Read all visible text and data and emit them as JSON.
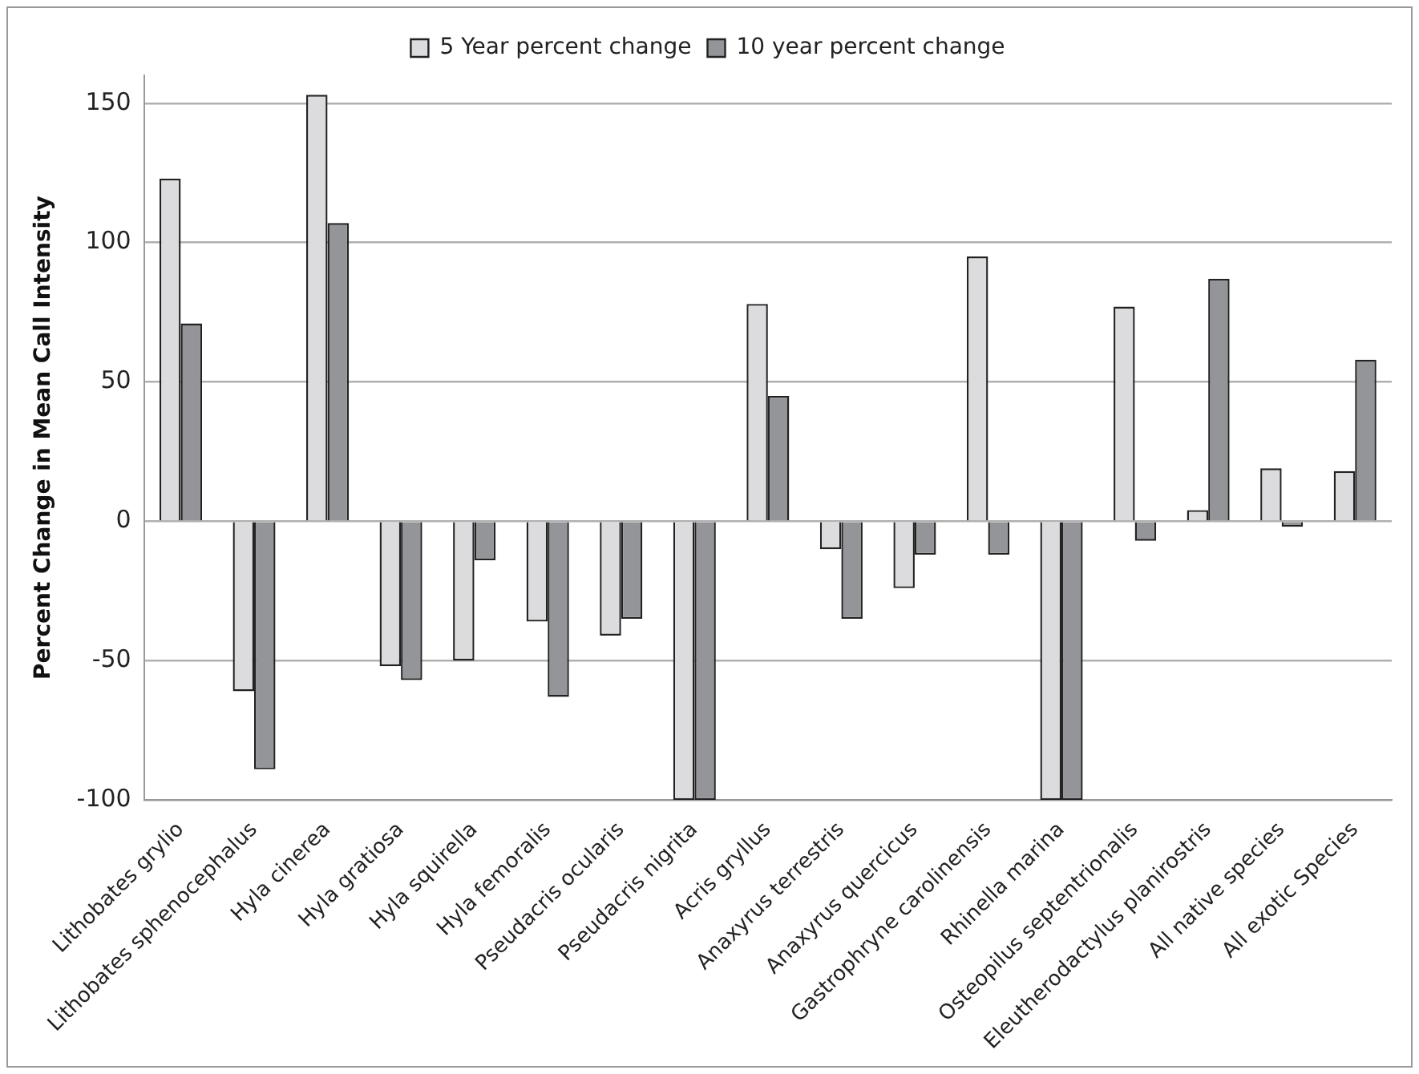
{
  "chart_data": {
    "type": "bar",
    "ylabel": "Percent Change in Mean Call Intensity",
    "categories": [
      "Lithobates grylio",
      "Lithobates sphenocephalus",
      "Hyla cinerea",
      "Hyla gratiosa",
      "Hyla squirella",
      "Hyla femoralis",
      "Pseudacris ocularis",
      "Pseudacris nigrita",
      "Acris gryllus",
      "Anaxyrus terrestris",
      "Anaxyrus quercicus",
      "Gastrophryne carolinensis",
      "Rhinella marina",
      "Osteopilus septentrionalis",
      "Eleutherodactylus planirostris",
      "All native species",
      "All exotic Species"
    ],
    "series": [
      {
        "name": "5 Year percent change",
        "color": "#dcdcde",
        "values": [
          123,
          -61,
          153,
          -52,
          -50,
          -36,
          -41,
          -100,
          78,
          -10,
          -24,
          95,
          -100,
          77,
          4,
          19,
          18
        ]
      },
      {
        "name": "10 year percent change",
        "color": "#939598",
        "values": [
          71,
          -89,
          107,
          -57,
          -14,
          -63,
          -35,
          -100,
          45,
          -35,
          -12,
          -12,
          -100,
          -7,
          87,
          -2,
          58
        ]
      }
    ],
    "ylim": [
      -100,
      160
    ],
    "yticks": [
      -100,
      -50,
      0,
      50,
      100,
      150
    ],
    "grid": "y",
    "legend": "top"
  }
}
